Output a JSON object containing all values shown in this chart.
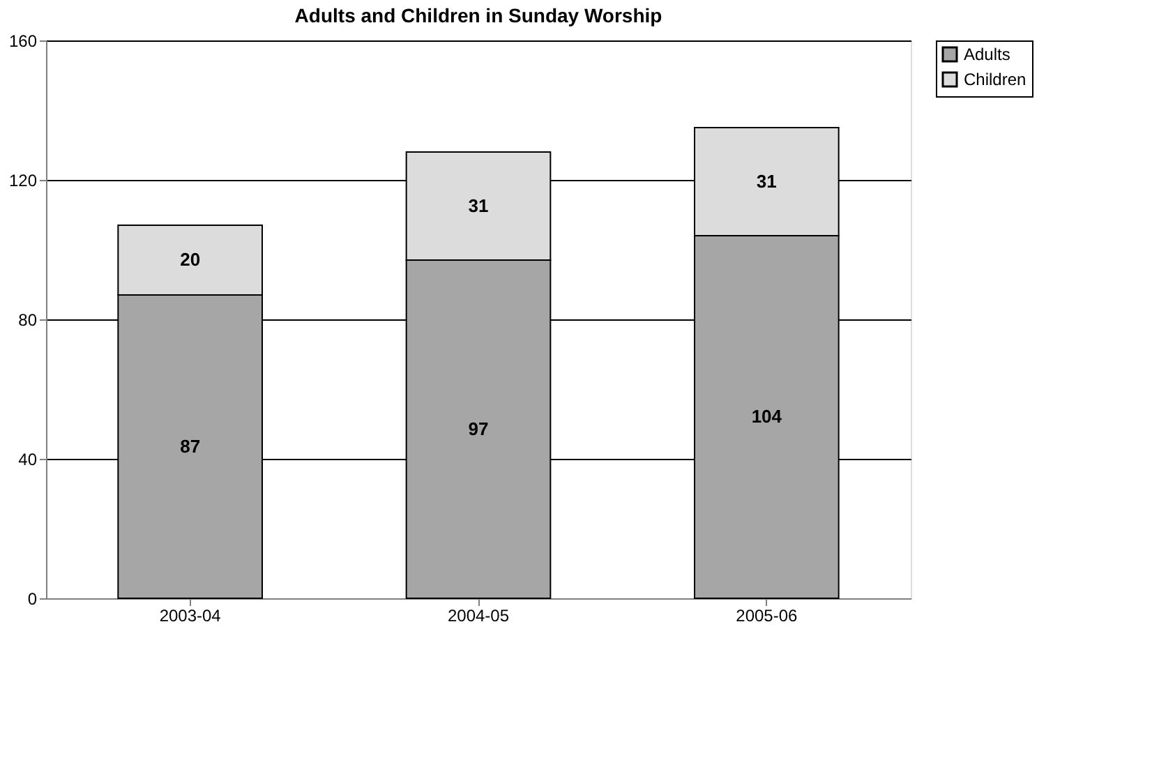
{
  "chart_data": {
    "type": "bar",
    "title": "Adults and Children in Sunday Worship",
    "categories": [
      "2003-04",
      "2004-05",
      "2005-06"
    ],
    "stacked": true,
    "series": [
      {
        "name": "Adults",
        "color": "#a6a6a6",
        "values": [
          87,
          97,
          104
        ]
      },
      {
        "name": "Children",
        "color": "#dcdcdc",
        "values": [
          20,
          31,
          31
        ]
      }
    ],
    "ylim": [
      0,
      160
    ],
    "yticks": [
      0,
      40,
      80,
      120,
      160
    ],
    "grid": "y",
    "legend": "right",
    "data_labels": true
  }
}
